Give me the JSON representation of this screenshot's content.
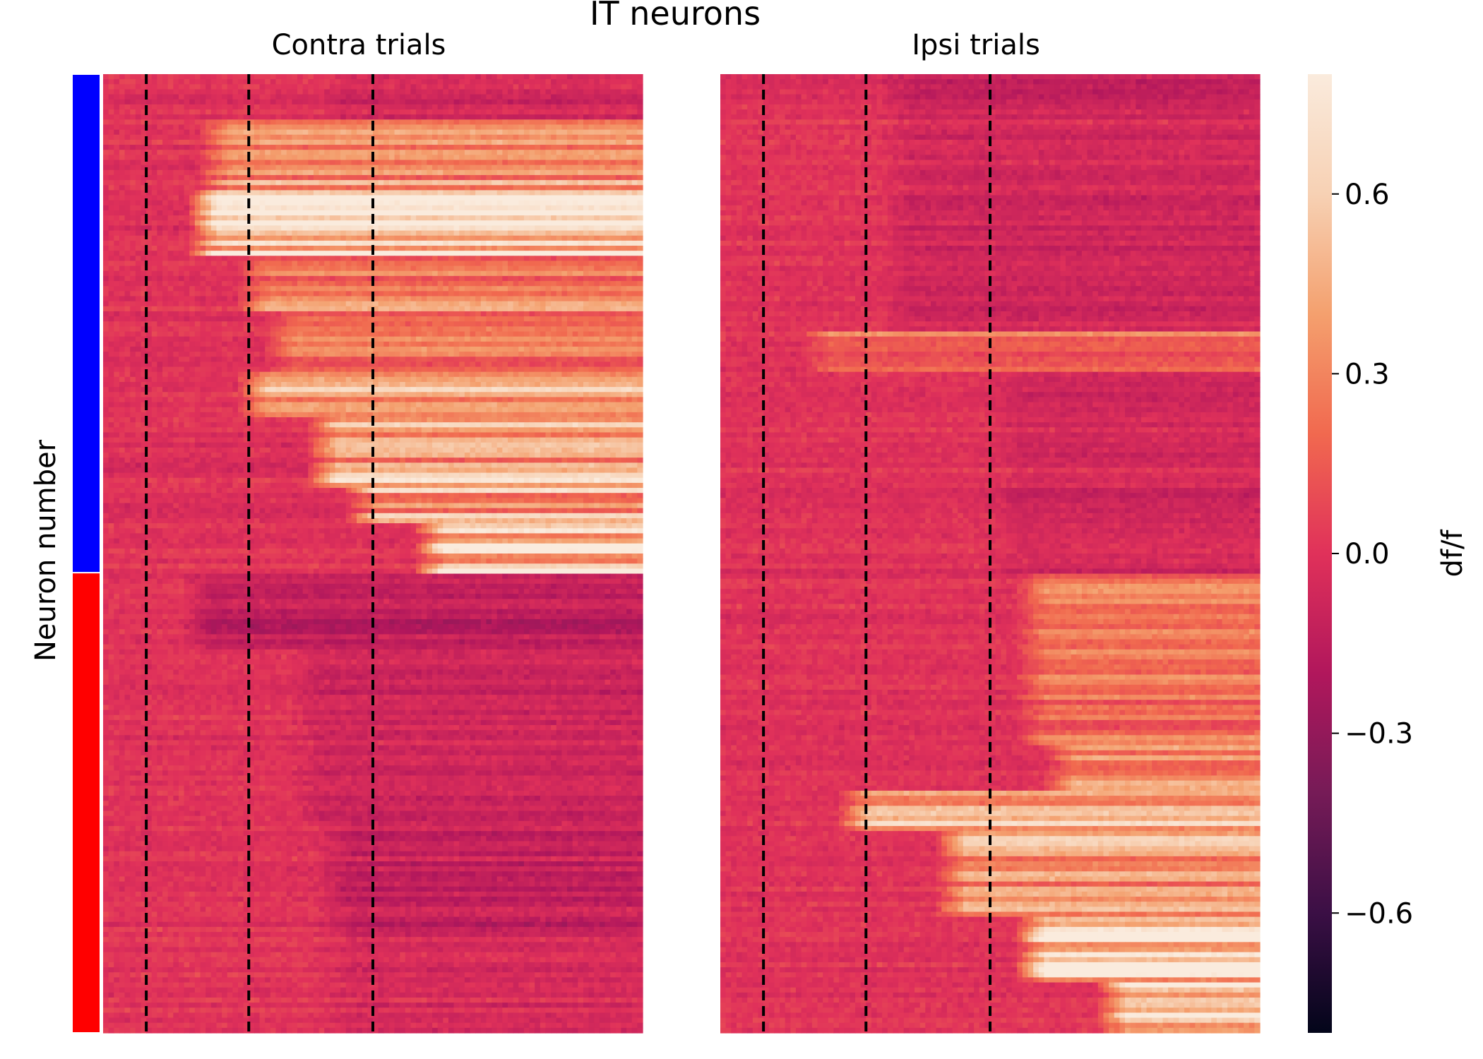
{
  "chart_data": {
    "type": "heatmap",
    "title": "IT neurons",
    "ylabel": "Neuron number",
    "colorbar": {
      "label": "df/f",
      "vmin": -0.8,
      "vmax": 0.8,
      "ticks": [
        0.6,
        0.3,
        0.0,
        -0.3,
        -0.6
      ],
      "tick_labels": [
        "0.6",
        "0.3",
        "0.0",
        "−0.3",
        "−0.6"
      ],
      "colormap": [
        "#03051a",
        "#3b0f45",
        "#761b57",
        "#b1175c",
        "#e0315a",
        "#f1694f",
        "#f4a06e",
        "#f7d1b4",
        "#faebdd"
      ]
    },
    "neuron_groups": [
      {
        "color": "#0000ff",
        "from_fraction": 0.0,
        "to_fraction": 0.52
      },
      {
        "color": "#ff0000",
        "from_fraction": 0.52,
        "to_fraction": 1.0
      }
    ],
    "n_neurons": 190,
    "n_timebins": 100,
    "event_lines_timebin": [
      8,
      27,
      50
    ],
    "panels": [
      {
        "title": "Contra trials",
        "segments": [
          {
            "from": 0.05,
            "to": 0.12,
            "onset": 18,
            "amplitude": 0.35,
            "sign": 1
          },
          {
            "from": 0.12,
            "to": 0.19,
            "onset": 16,
            "amplitude": 0.65,
            "sign": 1
          },
          {
            "from": 0.19,
            "to": 0.25,
            "onset": 25,
            "amplitude": 0.3,
            "sign": 1
          },
          {
            "from": 0.25,
            "to": 0.31,
            "onset": 30,
            "amplitude": 0.25,
            "sign": 1
          },
          {
            "from": 0.31,
            "to": 0.36,
            "onset": 25,
            "amplitude": 0.5,
            "sign": 1
          },
          {
            "from": 0.36,
            "to": 0.43,
            "onset": 38,
            "amplitude": 0.45,
            "sign": 1
          },
          {
            "from": 0.43,
            "to": 0.47,
            "onset": 45,
            "amplitude": 0.45,
            "sign": 1
          },
          {
            "from": 0.47,
            "to": 0.52,
            "onset": 58,
            "amplitude": 0.65,
            "sign": 1
          },
          {
            "from": 0.52,
            "to": 0.6,
            "onset": 15,
            "amplitude": 0.15,
            "sign": -1
          },
          {
            "from": 0.6,
            "to": 0.78,
            "onset": 35,
            "amplitude": 0.08,
            "sign": -1
          },
          {
            "from": 0.78,
            "to": 0.9,
            "onset": 40,
            "amplitude": 0.12,
            "sign": -1
          },
          {
            "from": 0.9,
            "to": 1.0,
            "onset": 40,
            "amplitude": 0.05,
            "sign": -1
          }
        ]
      },
      {
        "title": "Ipsi trials",
        "segments": [
          {
            "from": 0.0,
            "to": 0.27,
            "onset": 30,
            "amplitude": 0.08,
            "sign": -1
          },
          {
            "from": 0.27,
            "to": 0.31,
            "onset": 15,
            "amplitude": 0.2,
            "sign": 1
          },
          {
            "from": 0.31,
            "to": 0.52,
            "onset": 50,
            "amplitude": 0.06,
            "sign": -1
          },
          {
            "from": 0.52,
            "to": 0.7,
            "onset": 55,
            "amplitude": 0.25,
            "sign": 1
          },
          {
            "from": 0.7,
            "to": 0.75,
            "onset": 60,
            "amplitude": 0.4,
            "sign": 1
          },
          {
            "from": 0.75,
            "to": 0.79,
            "onset": 22,
            "amplitude": 0.55,
            "sign": 1
          },
          {
            "from": 0.79,
            "to": 0.88,
            "onset": 40,
            "amplitude": 0.4,
            "sign": 1
          },
          {
            "from": 0.88,
            "to": 0.95,
            "onset": 55,
            "amplitude": 0.65,
            "sign": 1
          },
          {
            "from": 0.95,
            "to": 1.0,
            "onset": 70,
            "amplitude": 0.55,
            "sign": 1
          }
        ]
      }
    ]
  }
}
